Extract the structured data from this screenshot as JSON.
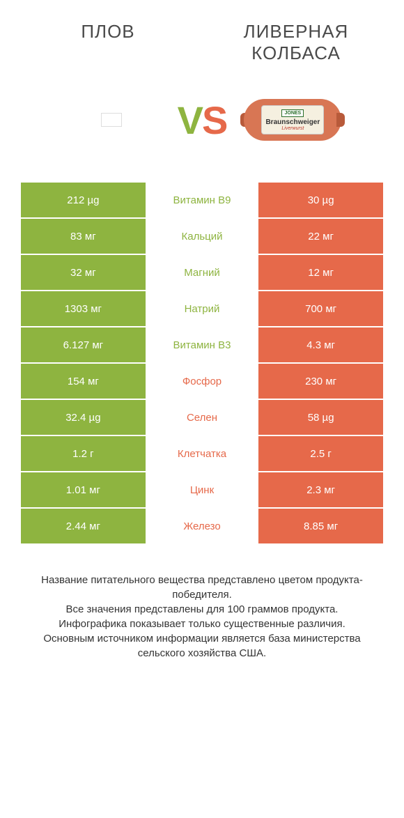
{
  "header": {
    "left_title": "ПЛОВ",
    "right_title": "ЛИВЕРНАЯ КОЛБАСА"
  },
  "vs": {
    "v": "V",
    "s": "S"
  },
  "sausage": {
    "brand": "JONES",
    "text1": "Braunschweiger",
    "text2": "Liverwurst"
  },
  "colors": {
    "left": "#8eb440",
    "right": "#e6694a",
    "left_text": "#8eb440",
    "right_text": "#e6694a",
    "white": "#ffffff"
  },
  "rows": [
    {
      "left": "212 µg",
      "mid": "Витамин B9",
      "right": "30 µg",
      "winner": "left"
    },
    {
      "left": "83 мг",
      "mid": "Кальций",
      "right": "22 мг",
      "winner": "left"
    },
    {
      "left": "32 мг",
      "mid": "Магний",
      "right": "12 мг",
      "winner": "left"
    },
    {
      "left": "1303 мг",
      "mid": "Натрий",
      "right": "700 мг",
      "winner": "left"
    },
    {
      "left": "6.127 мг",
      "mid": "Витамин B3",
      "right": "4.3 мг",
      "winner": "left"
    },
    {
      "left": "154 мг",
      "mid": "Фосфор",
      "right": "230 мг",
      "winner": "right"
    },
    {
      "left": "32.4 µg",
      "mid": "Селен",
      "right": "58 µg",
      "winner": "right"
    },
    {
      "left": "1.2 г",
      "mid": "Клетчатка",
      "right": "2.5 г",
      "winner": "right"
    },
    {
      "left": "1.01 мг",
      "mid": "Цинк",
      "right": "2.3 мг",
      "winner": "right"
    },
    {
      "left": "2.44 мг",
      "mid": "Железо",
      "right": "8.85 мг",
      "winner": "right"
    }
  ],
  "footer": {
    "line1": "Название питательного вещества представлено цветом продукта-победителя.",
    "line2": "Все значения представлены для 100 граммов продукта.",
    "line3": "Инфографика показывает только существенные различия.",
    "line4": "Основным источником информации является база министерства сельского хозяйства США."
  }
}
